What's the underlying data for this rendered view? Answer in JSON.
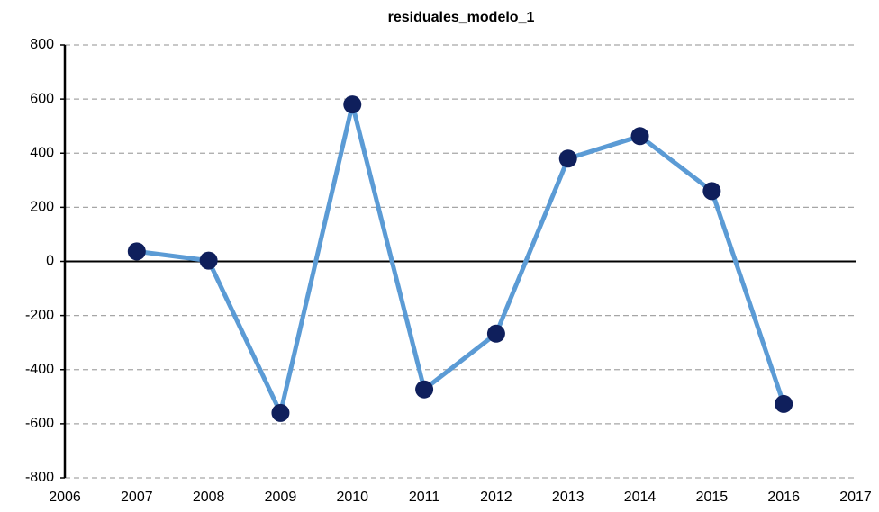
{
  "chart_data": {
    "type": "line",
    "title": "residuales_modelo_1",
    "x": [
      2007,
      2008,
      2009,
      2010,
      2011,
      2012,
      2013,
      2014,
      2015,
      2016
    ],
    "series": [
      {
        "name": "residuales_modelo_1",
        "color": "#5b9bd5",
        "marker_color": "#0f1f5c",
        "values": [
          37,
          3,
          -560,
          580,
          -473,
          -267,
          380,
          463,
          260,
          -527
        ]
      }
    ],
    "xlim": [
      2006,
      2017
    ],
    "xticks": [
      2006,
      2007,
      2008,
      2009,
      2010,
      2011,
      2012,
      2013,
      2014,
      2015,
      2016,
      2017
    ],
    "ylim": [
      -800,
      800
    ],
    "yticks": [
      -800,
      -600,
      -400,
      -200,
      0,
      200,
      400,
      600,
      800
    ],
    "grid": true
  }
}
